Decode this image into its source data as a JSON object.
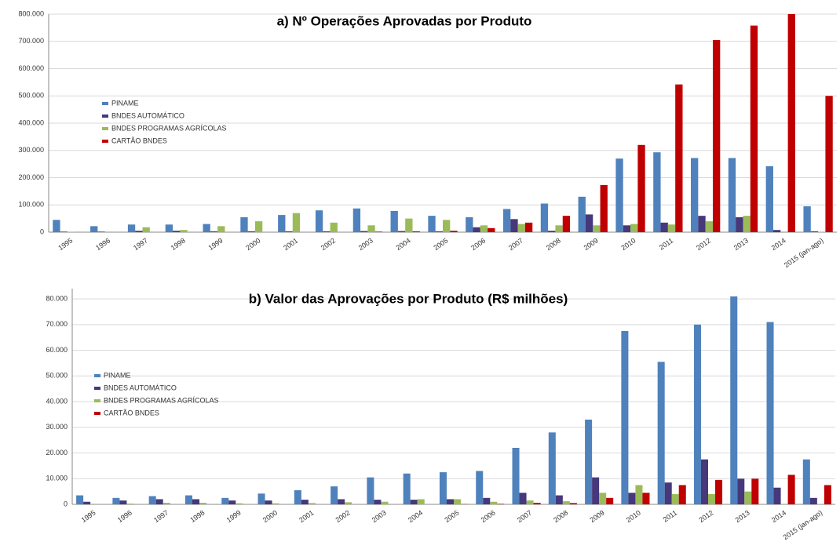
{
  "chart_data": [
    {
      "type": "bar",
      "title": "a)  Nº Operações Aprovadas por Produto",
      "categories": [
        "1995",
        "1996",
        "1997",
        "1998",
        "1999",
        "2000",
        "2001",
        "2002",
        "2003",
        "2004",
        "2005",
        "2006",
        "2007",
        "2008",
        "2009",
        "2010",
        "2011",
        "2012",
        "2013",
        "2014",
        "2015 (jan-ago)"
      ],
      "series": [
        {
          "name": "PINAME",
          "color": "#4f81bd",
          "values": [
            45000,
            22000,
            28000,
            28000,
            30000,
            55000,
            63000,
            80000,
            87000,
            78000,
            60000,
            55000,
            85000,
            105000,
            130000,
            270000,
            293000,
            272000,
            272000,
            242000,
            95000
          ]
        },
        {
          "name": "BNDES AUTOMÁTICO",
          "color": "#46387a",
          "values": [
            2000,
            2000,
            5000,
            5000,
            3000,
            3000,
            3000,
            3000,
            4000,
            4000,
            3000,
            18000,
            48000,
            5000,
            65000,
            25000,
            35000,
            60000,
            55000,
            8000,
            3000
          ]
        },
        {
          "name": "BNDES PROGRAMAS AGRÍCOLAS",
          "color": "#9bbb59",
          "values": [
            1000,
            2000,
            18000,
            8000,
            22000,
            40000,
            70000,
            35000,
            25000,
            50000,
            45000,
            25000,
            30000,
            25000,
            25000,
            30000,
            28000,
            40000,
            60000,
            2000,
            1000
          ]
        },
        {
          "name": "CARTÃO BNDES",
          "color": "#c00000",
          "values": [
            0,
            0,
            0,
            0,
            0,
            0,
            0,
            0,
            2000,
            3000,
            5000,
            15000,
            35000,
            60000,
            173000,
            320000,
            542000,
            705000,
            758000,
            800000,
            500000
          ]
        }
      ],
      "ylim": [
        0,
        800000
      ],
      "yticks": [
        0,
        {
          "value": 100000,
          "label": "100.000"
        },
        {
          "value": 200000,
          "label": "200.000"
        },
        {
          "value": 300000,
          "label": "300.000"
        },
        {
          "value": 400000,
          "label": "400.000"
        },
        {
          "value": 500000,
          "label": "500.000"
        },
        {
          "value": 600000,
          "label": "600.000"
        },
        {
          "value": 700000,
          "label": "700.000"
        },
        {
          "value": 800000,
          "label": "800.000"
        }
      ],
      "grid": true
    },
    {
      "type": "bar",
      "title": "b) Valor das Aprovações por Produto (R$ milhões)",
      "categories": [
        "1995",
        "1996",
        "1997",
        "1998",
        "1999",
        "2000",
        "2001",
        "2002",
        "2003",
        "2004",
        "2005",
        "2006",
        "2007",
        "2008",
        "2009",
        "2010",
        "2011",
        "2012",
        "2013",
        "2014",
        "2015 (jan-ago)"
      ],
      "series": [
        {
          "name": "PINAME",
          "color": "#4f81bd",
          "values": [
            3500,
            2500,
            3200,
            3500,
            2500,
            4200,
            5500,
            7000,
            10500,
            12000,
            12500,
            13000,
            22000,
            28000,
            33000,
            67500,
            55500,
            70000,
            81000,
            71000,
            17500
          ]
        },
        {
          "name": "BNDES AUTOMÁTICO",
          "color": "#46387a",
          "values": [
            1000,
            1500,
            2000,
            2000,
            1500,
            1500,
            1800,
            2000,
            1800,
            1800,
            2000,
            2500,
            4500,
            3500,
            10500,
            4500,
            8500,
            17500,
            10000,
            6500,
            2500
          ]
        },
        {
          "name": "BNDES PROGRAMAS AGRÍCOLAS",
          "color": "#9bbb59",
          "values": [
            200,
            300,
            600,
            600,
            400,
            400,
            500,
            800,
            1000,
            2000,
            2000,
            1000,
            1500,
            1200,
            4500,
            7500,
            4000,
            4000,
            5000,
            200,
            100
          ]
        },
        {
          "name": "CARTÃO BNDES",
          "color": "#c00000",
          "values": [
            0,
            0,
            0,
            0,
            0,
            0,
            0,
            0,
            0,
            0,
            100,
            200,
            600,
            500,
            2500,
            4500,
            7500,
            9500,
            10000,
            11500,
            7500
          ]
        }
      ],
      "ylim": [
        0,
        84000
      ],
      "yticks": [
        0,
        {
          "value": 10000,
          "label": "10.000"
        },
        {
          "value": 20000,
          "label": "20.000"
        },
        {
          "value": 30000,
          "label": "30.000"
        },
        {
          "value": 40000,
          "label": "40.000"
        },
        {
          "value": 50000,
          "label": "50.000"
        },
        {
          "value": 60000,
          "label": "60.000"
        },
        {
          "value": 70000,
          "label": "70.000"
        },
        {
          "value": 80000,
          "label": "80.000"
        }
      ],
      "grid": true
    }
  ]
}
